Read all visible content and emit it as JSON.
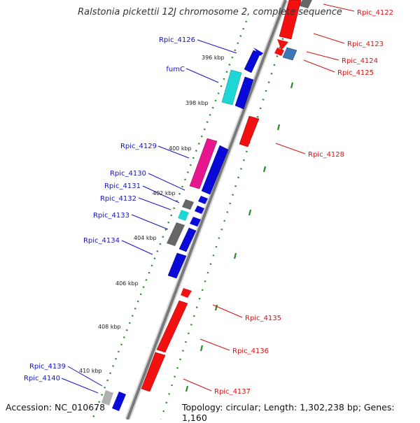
{
  "title": "Ralstonia pickettii 12J chromosome 2, complete sequence",
  "accession": "Accession: NC_010678",
  "summary": "Topology: circular; Length: 1,302,238 bp; Genes: 1,160",
  "kbp_ticks": [
    {
      "label": "396 kbp"
    },
    {
      "label": "398 kbp"
    },
    {
      "label": "400 kbp"
    },
    {
      "label": "402 kbp"
    },
    {
      "label": "404 kbp"
    },
    {
      "label": "406 kbp"
    },
    {
      "label": "408 kbp"
    },
    {
      "label": "410 kbp"
    }
  ],
  "genes_left": [
    {
      "label": "Rpic_4126"
    },
    {
      "label": "fumC"
    },
    {
      "label": "Rpic_4129"
    },
    {
      "label": "Rpic_4130"
    },
    {
      "label": "Rpic_4131"
    },
    {
      "label": "Rpic_4132"
    },
    {
      "label": "Rpic_4133"
    },
    {
      "label": "Rpic_4134"
    },
    {
      "label": "Rpic_4139"
    },
    {
      "label": "Rpic_4140"
    }
  ],
  "genes_right": [
    {
      "label": "Rpic_4122"
    },
    {
      "label": "Rpic_4123"
    },
    {
      "label": "Rpic_4124"
    },
    {
      "label": "Rpic_4125"
    },
    {
      "label": "Rpic_4128"
    },
    {
      "label": "Rpic_4135"
    },
    {
      "label": "Rpic_4136"
    },
    {
      "label": "Rpic_4137"
    }
  ],
  "colors": {
    "forward": "#0a0ad8",
    "reverse": "#f21010",
    "cyan": "#1fd6d6",
    "magenta": "#e8168e",
    "gray": "#666666",
    "steelblue": "#3c78b4",
    "backbone": "#8a8a8a",
    "dots": "#2a8a2a"
  }
}
